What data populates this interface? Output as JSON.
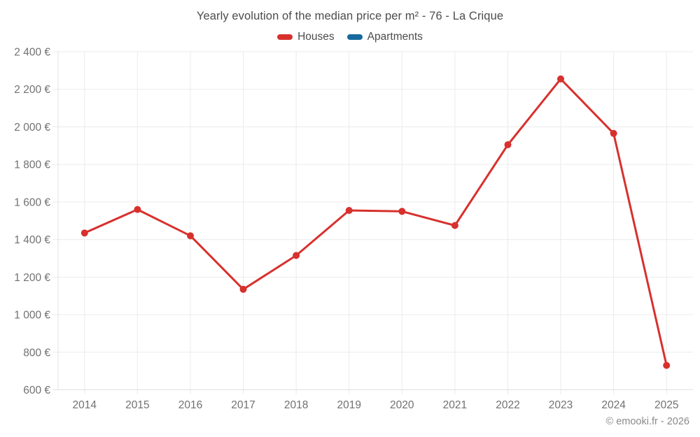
{
  "header": {
    "title": "Yearly evolution of the median price per m² - 76 - La Crique"
  },
  "legend": {
    "items": [
      {
        "label": "Houses",
        "color": "#d7312e"
      },
      {
        "label": "Apartments",
        "color": "#17699e"
      }
    ]
  },
  "footer": {
    "credit": "© emooki.fr - 2026"
  },
  "chart_data": {
    "type": "line",
    "title": "Yearly evolution of the median price per m² - 76 - La Crique",
    "xlabel": "",
    "ylabel": "",
    "categories": [
      "2014",
      "2015",
      "2016",
      "2017",
      "2018",
      "2019",
      "2020",
      "2021",
      "2022",
      "2023",
      "2024",
      "2025"
    ],
    "series": [
      {
        "name": "Houses",
        "color": "#d7312e",
        "values": [
          1435,
          1560,
          1420,
          1135,
          1315,
          1555,
          1550,
          1475,
          1905,
          2255,
          1965,
          730
        ]
      },
      {
        "name": "Apartments",
        "color": "#17699e",
        "values": []
      }
    ],
    "ylim": [
      600,
      2400
    ],
    "ytick_step": 200,
    "ytick_labels": [
      "600 €",
      "800 €",
      "1 000 €",
      "1 200 €",
      "1 400 €",
      "1 600 €",
      "1 800 €",
      "2 000 €",
      "2 200 €",
      "2 400 €"
    ],
    "grid": true,
    "legend_position": "top",
    "colors": {
      "gridline": "#ebebeb",
      "axis_line": "#e2e2e2",
      "axis_label": "#717171"
    }
  }
}
